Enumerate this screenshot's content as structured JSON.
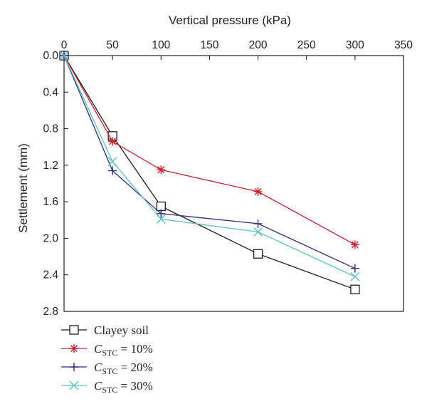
{
  "chart_data": {
    "type": "line",
    "xlabel": "Vertical pressure (kPa)",
    "ylabel": "Settlement (mm)",
    "xlim": [
      0,
      350
    ],
    "ylim": [
      0.0,
      2.8
    ],
    "y_inverted": true,
    "x_axis_position": "top",
    "grid": false,
    "legend_position": "below-left",
    "xticks": [
      "0",
      "50",
      "100",
      "150",
      "200",
      "250",
      "300",
      "350"
    ],
    "xtick_values": [
      0,
      50,
      100,
      150,
      200,
      250,
      300,
      350
    ],
    "yticks": [
      "0.0",
      "0.4",
      "0.8",
      "1.2",
      "1.6",
      "2.0",
      "2.4",
      "2.8"
    ],
    "ytick_values": [
      0.0,
      0.4,
      0.8,
      1.2,
      1.6,
      2.0,
      2.4,
      2.8
    ],
    "series": [
      {
        "name": "Clayey soil",
        "legend": {
          "symbol": "",
          "subscript": "",
          "rest": "Clayey soil"
        },
        "marker": "square",
        "color": "#1a1a1a",
        "x": [
          0,
          50,
          100,
          200,
          300
        ],
        "y": [
          0.0,
          0.88,
          1.65,
          2.17,
          2.56
        ]
      },
      {
        "name": "C_STC = 10%",
        "legend": {
          "symbol": "C",
          "subscript": "STC",
          "rest": " = 10%"
        },
        "marker": "asterisk",
        "color": "#cc1f2e",
        "x": [
          0,
          50,
          100,
          200,
          300
        ],
        "y": [
          0.0,
          0.94,
          1.25,
          1.49,
          2.07
        ]
      },
      {
        "name": "C_STC = 20%",
        "legend": {
          "symbol": "C",
          "subscript": "STC",
          "rest": " = 20%"
        },
        "marker": "plus",
        "color": "#2e2a86",
        "x": [
          0,
          50,
          100,
          200,
          300
        ],
        "y": [
          0.0,
          1.26,
          1.73,
          1.84,
          2.33
        ]
      },
      {
        "name": "C_STC = 30%",
        "legend": {
          "symbol": "C",
          "subscript": "STC",
          "rest": " = 30%"
        },
        "marker": "cross",
        "color": "#5cc4c2",
        "x": [
          0,
          50,
          100,
          200,
          300
        ],
        "y": [
          0.0,
          1.16,
          1.79,
          1.93,
          2.42
        ]
      }
    ]
  }
}
